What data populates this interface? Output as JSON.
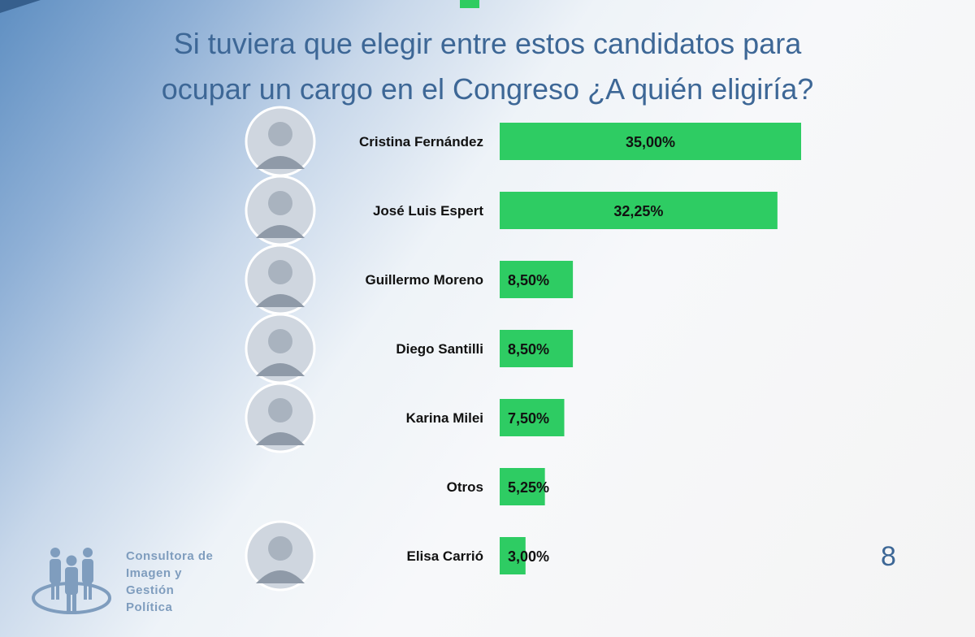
{
  "title": {
    "line1": "Si tuviera que elegir entre estos candidatos para",
    "line2": "ocupar un cargo en el Congreso ¿A quién eligiría?"
  },
  "colors": {
    "bar": "#2ecc63",
    "title": "#3d6796",
    "logo": "#7f9dbe"
  },
  "chart_data": {
    "type": "bar",
    "orientation": "horizontal",
    "categories": [
      "Cristina Fernández",
      "José Luis Espert",
      "Guillermo Moreno",
      "Diego Santilli",
      "Karina Milei",
      "Otros",
      "Elisa Carrió"
    ],
    "values": [
      35.0,
      32.25,
      8.5,
      8.5,
      7.5,
      5.25,
      3.0
    ],
    "value_labels": [
      "35,00%",
      "32,25%",
      "8,50%",
      "8,50%",
      "7,50%",
      "5,25%",
      "3,00%"
    ],
    "portraits": [
      true,
      true,
      true,
      true,
      true,
      false,
      true
    ],
    "title": "Si tuviera que elegir entre estos candidatos para ocupar un cargo en el Congreso ¿A quién eligiría?",
    "xlim": [
      0,
      40
    ],
    "grid": false,
    "legend": "none"
  },
  "logo": {
    "icon": "people-group-icon",
    "line1": "Consultora de",
    "line2": "Imagen y",
    "line3": "Gestión",
    "line4": "Política"
  },
  "page_number": "8"
}
